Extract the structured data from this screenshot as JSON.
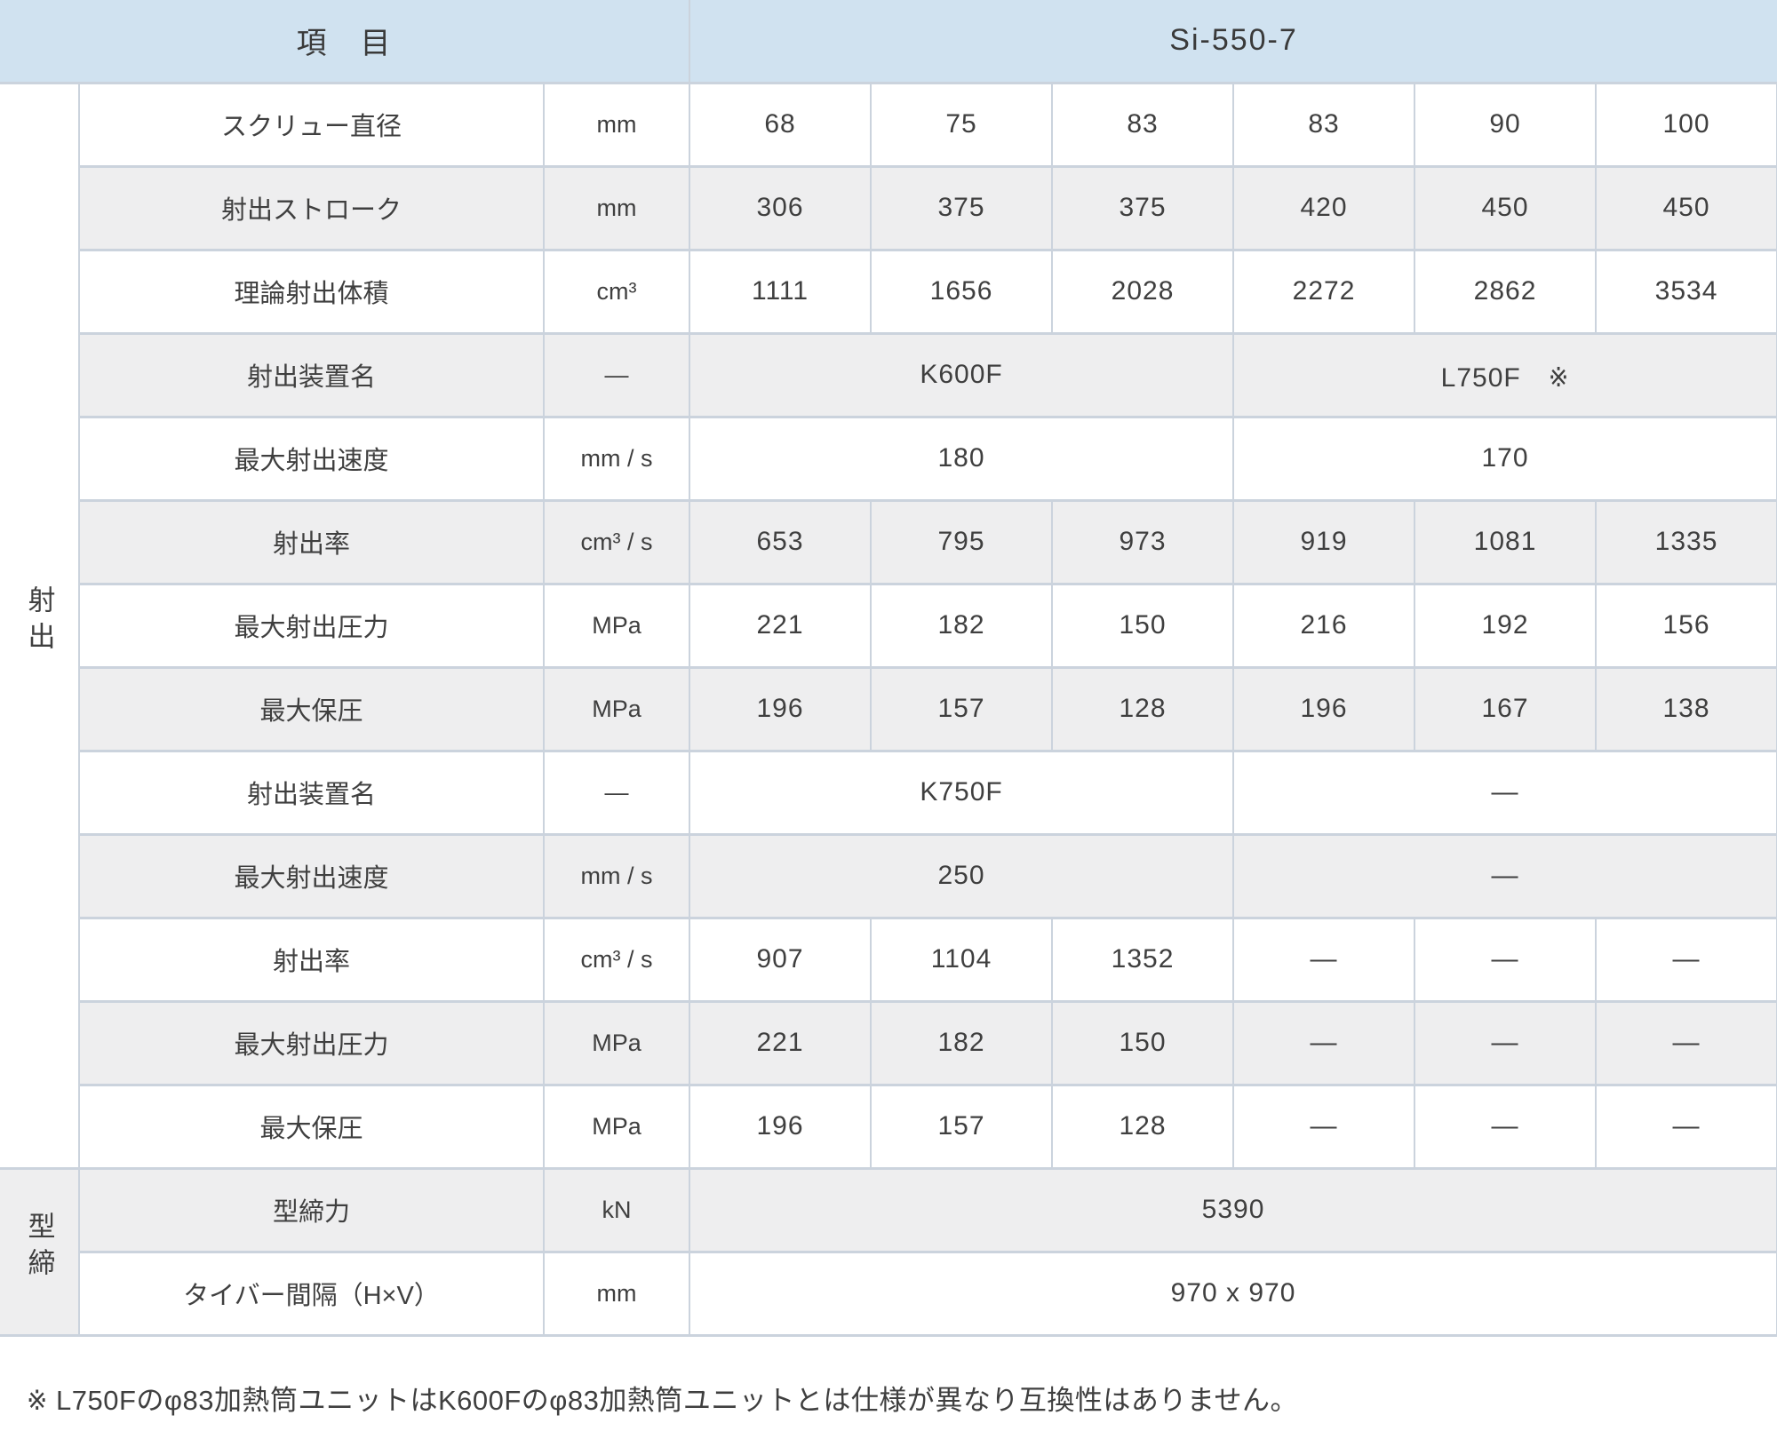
{
  "header": {
    "item_label": "項　目",
    "model": "Si-550-7"
  },
  "groups": {
    "injection": "射出",
    "clamping": "型締"
  },
  "rows": [
    {
      "label": "スクリュー直径",
      "unit": "mm",
      "cells": [
        {
          "v": "68"
        },
        {
          "v": "75"
        },
        {
          "v": "83"
        },
        {
          "v": "83"
        },
        {
          "v": "90"
        },
        {
          "v": "100"
        }
      ]
    },
    {
      "label": "射出ストローク",
      "unit": "mm",
      "cells": [
        {
          "v": "306"
        },
        {
          "v": "375"
        },
        {
          "v": "375"
        },
        {
          "v": "420"
        },
        {
          "v": "450"
        },
        {
          "v": "450"
        }
      ]
    },
    {
      "label": "理論射出体積",
      "unit": "cm³",
      "cells": [
        {
          "v": "1111"
        },
        {
          "v": "1656"
        },
        {
          "v": "2028"
        },
        {
          "v": "2272"
        },
        {
          "v": "2862"
        },
        {
          "v": "3534"
        }
      ]
    },
    {
      "label": "射出装置名",
      "unit": "—",
      "cells": [
        {
          "v": "K600F",
          "span": 3
        },
        {
          "v": "L750F　※",
          "span": 3
        }
      ]
    },
    {
      "label": "最大射出速度",
      "unit": "mm / s",
      "cells": [
        {
          "v": "180",
          "span": 3
        },
        {
          "v": "170",
          "span": 3
        }
      ]
    },
    {
      "label": "射出率",
      "unit": "cm³ / s",
      "cells": [
        {
          "v": "653"
        },
        {
          "v": "795"
        },
        {
          "v": "973"
        },
        {
          "v": "919"
        },
        {
          "v": "1081"
        },
        {
          "v": "1335"
        }
      ]
    },
    {
      "label": "最大射出圧力",
      "unit": "MPa",
      "cells": [
        {
          "v": "221"
        },
        {
          "v": "182"
        },
        {
          "v": "150"
        },
        {
          "v": "216"
        },
        {
          "v": "192"
        },
        {
          "v": "156"
        }
      ]
    },
    {
      "label": "最大保圧",
      "unit": "MPa",
      "cells": [
        {
          "v": "196"
        },
        {
          "v": "157"
        },
        {
          "v": "128"
        },
        {
          "v": "196"
        },
        {
          "v": "167"
        },
        {
          "v": "138"
        }
      ]
    },
    {
      "label": "射出装置名",
      "unit": "—",
      "cells": [
        {
          "v": "K750F",
          "span": 3
        },
        {
          "v": "—",
          "span": 3
        }
      ]
    },
    {
      "label": "最大射出速度",
      "unit": "mm / s",
      "cells": [
        {
          "v": "250",
          "span": 3
        },
        {
          "v": "—",
          "span": 3
        }
      ]
    },
    {
      "label": "射出率",
      "unit": "cm³ / s",
      "cells": [
        {
          "v": "907"
        },
        {
          "v": "1104"
        },
        {
          "v": "1352"
        },
        {
          "v": "—"
        },
        {
          "v": "—"
        },
        {
          "v": "—"
        }
      ]
    },
    {
      "label": "最大射出圧力",
      "unit": "MPa",
      "cells": [
        {
          "v": "221"
        },
        {
          "v": "182"
        },
        {
          "v": "150"
        },
        {
          "v": "—"
        },
        {
          "v": "—"
        },
        {
          "v": "—"
        }
      ]
    },
    {
      "label": "最大保圧",
      "unit": "MPa",
      "cells": [
        {
          "v": "196"
        },
        {
          "v": "157"
        },
        {
          "v": "128"
        },
        {
          "v": "—"
        },
        {
          "v": "—"
        },
        {
          "v": "—"
        }
      ]
    },
    {
      "label": "型締力",
      "unit": "kN",
      "cells": [
        {
          "v": "5390",
          "span": 6
        }
      ]
    },
    {
      "label": "タイバー間隔（H×V）",
      "unit": "mm",
      "cells": [
        {
          "v": "970 x 970",
          "span": 6
        }
      ]
    }
  ],
  "footnote": "※ L750Fのφ83加熱筒ユニットはK600Fのφ83加熱筒ユニットとは仕様が異なり互換性はありません。",
  "colors": {
    "header_bg": "#d0e2f0",
    "stripe_bg": "#eeeeef",
    "border": "#cbd3dd"
  }
}
